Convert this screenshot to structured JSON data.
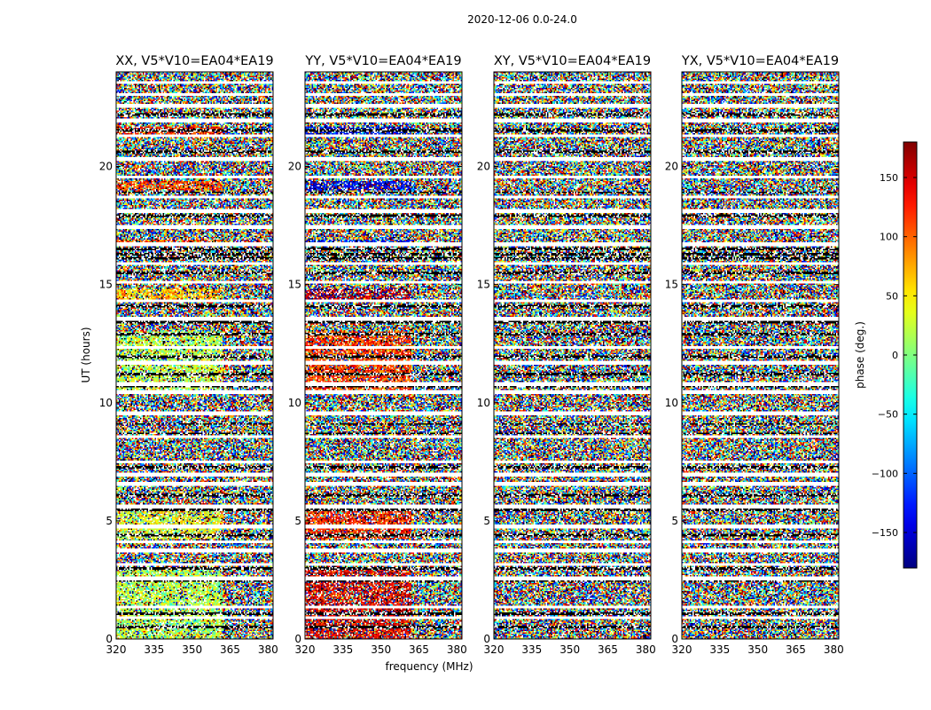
{
  "chart_data": {
    "type": "heatmap",
    "suptitle": "2020-12-06 0.0-24.0",
    "xlabel": "frequency (MHz)",
    "ylabel": "UT (hours)",
    "xlim": [
      320,
      382
    ],
    "ylim": [
      0,
      24
    ],
    "xticks": [
      320,
      335,
      350,
      365,
      380
    ],
    "yticks": [
      0,
      5,
      10,
      15,
      20
    ],
    "panels": [
      {
        "title": "XX, V5*V10=EA04*EA19",
        "mode": "xx"
      },
      {
        "title": "YY, V5*V10=EA04*EA19",
        "mode": "yy"
      },
      {
        "title": "XY, V5*V10=EA04*EA19",
        "mode": "cross"
      },
      {
        "title": "YX, V5*V10=EA04*EA19",
        "mode": "cross"
      }
    ],
    "colorbar": {
      "label": "phase (deg.)",
      "range": [
        -180,
        180
      ],
      "ticks": [
        150,
        100,
        50,
        0,
        -50,
        -100,
        -150
      ],
      "colormap": "jet"
    },
    "blank_rows_hours": [
      0.9,
      1.35,
      2.55,
      3.15,
      3.75,
      4.1,
      4.75,
      5.6,
      6.55,
      6.95,
      7.5,
      8.55,
      9.55,
      10.45,
      10.8,
      11.7,
      12.35,
      13.55,
      14.3,
      15.1,
      15.9,
      16.7,
      17.45,
      18.1,
      18.7,
      19.55,
      20.3,
      21.3,
      21.95,
      22.55,
      23.05,
      23.55
    ],
    "black_rows_hours": [
      0.5,
      1.05,
      2.45,
      3.0,
      4.4,
      5.45,
      6.1,
      7.25,
      8.7,
      9.1,
      10.7,
      11.2,
      11.95,
      12.9,
      13.4,
      14.1,
      15.5,
      16.1,
      16.3,
      16.5,
      17.9,
      18.9,
      20.6,
      21.5,
      22.2
    ]
  }
}
